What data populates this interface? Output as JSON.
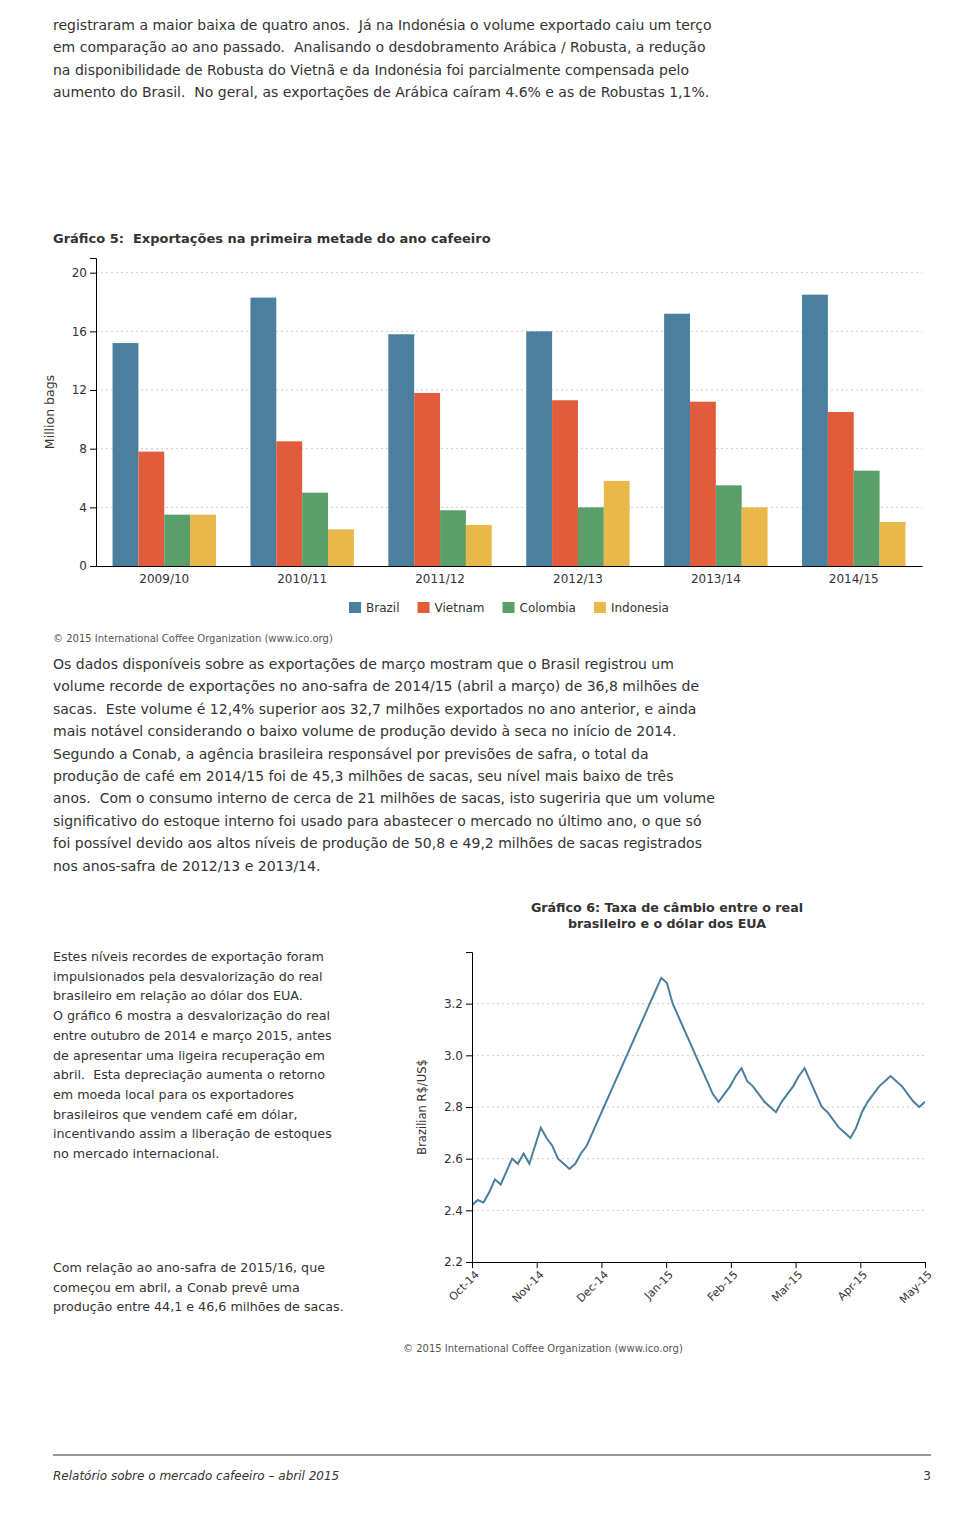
{
  "page": {
    "top_text": "registraram a maior baixa de quatro anos.  Já na Indonésia o volume exportado caiu um terço\nem comparação ao ano passado.  Analisando o desdobramento Arábica / Robusta, a redução\nna disponibilidade de Robusta do Vietnã e da Indonésia foi parcialmente compensada pelo\naumento do Brasil.  No geral, as exportações de Arábica caíram 4.6% e as de Robustas 1,1%.",
    "middle_text": "Os dados disponíveis sobre as exportações de março mostram que o Brasil registrou um\nvolume recorde de exportações no ano-safra de 2014/15 (abril a março) de 36,8 milhões de\nsacas.  Este volume é 12,4% superior aos 32,7 milhões exportados no ano anterior, e ainda\nmais notável considerando o baixo volume de produção devido à seca no início de 2014.\nSegundo a Conab, a agência brasileira responsável por previsões de safra, o total da\nprodução de café em 2014/15 foi de 45,3 milhões de sacas, seu nível mais baixo de três\nanos.  Com o consumo interno de cerca de 21 milhões de sacas, isto sugeriria que um volume\nsignificativo do estoque interno foi usado para abastecer o mercado no último ano, o que só\nfoi possível devido aos altos níveis de produção de 50,8 e 49,2 milhões de sacas registrados\nnos anos-safra de 2012/13 e 2013/14.",
    "left_text_1": "Estes níveis recordes de exportação foram\nimpulsionados pela desvalorização do real\nbrasileiro em relação ao dólar dos EUA.\nO gráfico 6 mostra a desvalorização do real\nentre outubro de 2014 e março 2015, antes\nde apresentar uma ligeira recuperação em\nabril.  Esta depreciação aumenta o retorno\nem moeda local para os exportadores\nbrasileiros que vendem café em dólar,\nincentivando assim a liberação de estoques\nno mercado internacional.",
    "left_text_2": "Com relação ao ano-safra de 2015/16, que\ncomeçou em abril, a Conab prevê uma\nprodução entre 44,1 e 46,6 milhões de sacas.",
    "footer_left": "Relatório sobre o mercado cafeeiro – abril 2015",
    "footer_right": "3"
  },
  "chart_data": [
    {
      "type": "bar",
      "title": "Gráfico 5:  Exportações na primeira metade do ano cafeeiro",
      "ylabel": "Million bags",
      "categories": [
        "2009/10",
        "2010/11",
        "2011/12",
        "2012/13",
        "2013/14",
        "2014/15"
      ],
      "series": [
        {
          "name": "Brazil",
          "color": "#4a7f9e",
          "values": [
            15.2,
            18.3,
            15.8,
            16.0,
            17.2,
            18.5
          ]
        },
        {
          "name": "Vietnam",
          "color": "#e05c3a",
          "values": [
            7.8,
            8.5,
            11.8,
            11.3,
            11.2,
            10.5
          ]
        },
        {
          "name": "Colombia",
          "color": "#5a9e6a",
          "values": [
            3.5,
            5.0,
            3.8,
            4.0,
            5.5,
            6.5
          ]
        },
        {
          "name": "Indonesia",
          "color": "#e8b84b",
          "values": [
            3.5,
            2.5,
            2.8,
            5.8,
            4.0,
            3.0
          ]
        }
      ],
      "ylim": [
        0,
        21
      ],
      "yticks": [
        0,
        4,
        8,
        12,
        16,
        20
      ],
      "grid": true,
      "legend": "bottom",
      "annotations": [
        "© 2015 International Coffee Organization (www.ico.org)"
      ]
    },
    {
      "type": "line",
      "title": "Gráfico 6: Taxa de câmbio entre o real\nbrasileiro e o dólar dos EUA",
      "ylabel": "Brazilian R$/US$",
      "x": [
        0,
        0.088608,
        0.177215,
        0.265823,
        0.35443,
        0.443038,
        0.531646,
        0.620253,
        0.708861,
        0.797468,
        0.886076,
        0.974684,
        1.063291,
        1.151899,
        1.240506,
        1.329114,
        1.417722,
        1.506329,
        1.594937,
        1.683544,
        1.772152,
        1.860759,
        1.949367,
        2.037975,
        2.126582,
        2.21519,
        2.303797,
        2.392405,
        2.481013,
        2.56962,
        2.658228,
        2.746835,
        2.835443,
        2.924051,
        3.012658,
        3.101266,
        3.189873,
        3.278481,
        3.367089,
        3.455696,
        3.544304,
        3.632911,
        3.721519,
        3.810127,
        3.898734,
        3.987342,
        4.075949,
        4.164557,
        4.253165,
        4.341772,
        4.43038,
        4.518987,
        4.607595,
        4.696203,
        4.78481,
        4.873418,
        4.962025,
        5.050633,
        5.139241,
        5.227848,
        5.316456,
        5.405063,
        5.493671,
        5.582278,
        5.670886,
        5.759494,
        5.848101,
        5.936709,
        6.025316,
        6.113924,
        6.202532,
        6.291139,
        6.379747,
        6.468354,
        6.556962,
        6.64557,
        6.734177,
        6.822785,
        6.911392,
        7
      ],
      "series": [
        {
          "color": "#4a7f9e",
          "values": [
            2.42,
            2.44,
            2.43,
            2.47,
            2.52,
            2.5,
            2.55,
            2.6,
            2.58,
            2.62,
            2.58,
            2.65,
            2.72,
            2.68,
            2.65,
            2.6,
            2.58,
            2.56,
            2.58,
            2.62,
            2.65,
            2.7,
            2.75,
            2.8,
            2.85,
            2.9,
            2.95,
            3.0,
            3.05,
            3.1,
            3.15,
            3.2,
            3.25,
            3.3,
            3.28,
            3.2,
            3.15,
            3.1,
            3.05,
            3.0,
            2.95,
            2.9,
            2.85,
            2.82,
            2.85,
            2.88,
            2.92,
            2.95,
            2.9,
            2.88,
            2.85,
            2.82,
            2.8,
            2.78,
            2.82,
            2.85,
            2.88,
            2.92,
            2.95,
            2.9,
            2.85,
            2.8,
            2.78,
            2.75,
            2.72,
            2.7,
            2.68,
            2.72,
            2.78,
            2.82,
            2.85,
            2.88,
            2.9,
            2.92,
            2.9,
            2.88,
            2.85,
            2.82,
            2.8,
            2.82
          ]
        }
      ],
      "xlim": [
        0,
        7
      ],
      "xticks": [
        {
          "value": 0,
          "label": "Oct-14"
        },
        {
          "value": 1,
          "label": "Nov-14"
        },
        {
          "value": 2,
          "label": "Dec-14"
        },
        {
          "value": 3,
          "label": "Jan-15"
        },
        {
          "value": 4,
          "label": "Feb-15"
        },
        {
          "value": 5,
          "label": "Mar-15"
        },
        {
          "value": 6,
          "label": "Apr-15"
        },
        {
          "value": 7,
          "label": "May-15"
        }
      ],
      "ylim": [
        2.2,
        3.4
      ],
      "yticks": [
        2.2,
        2.4,
        2.6,
        2.8,
        {
          "value": 3.0,
          "label": "3.0"
        },
        3.2
      ],
      "grid": true,
      "annotations": [
        "© 2015 International Coffee Organization (www.ico.org)"
      ]
    }
  ]
}
